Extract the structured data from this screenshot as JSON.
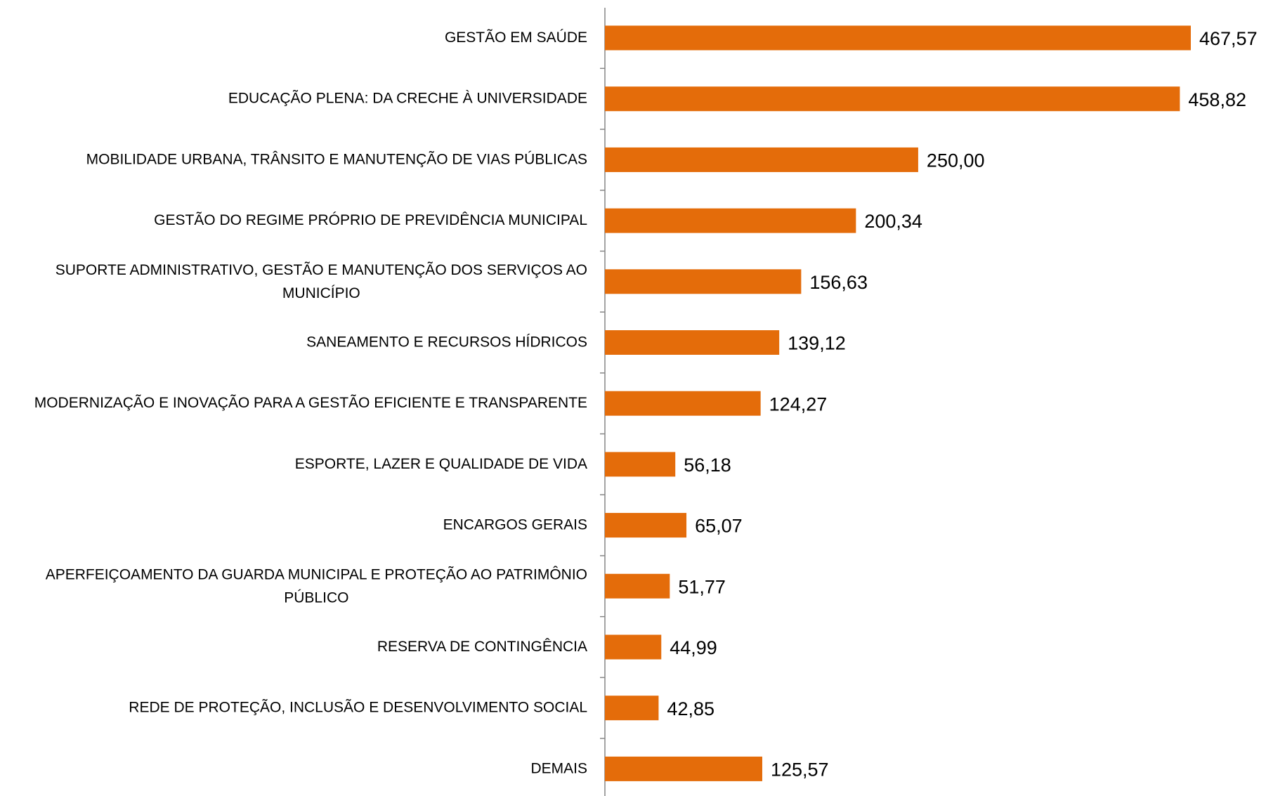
{
  "chart_data": {
    "type": "bar",
    "orientation": "horizontal",
    "categories": [
      "GESTÃO EM SAÚDE",
      "EDUCAÇÃO PLENA: DA CRECHE À UNIVERSIDADE",
      "MOBILIDADE URBANA, TRÂNSITO E MANUTENÇÃO DE VIAS PÚBLICAS",
      "GESTÃO DO REGIME PRÓPRIO DE PREVIDÊNCIA MUNICIPAL",
      "SUPORTE ADMINISTRATIVO, GESTÃO E MANUTENÇÃO DOS SERVIÇOS AO\nMUNICÍPIO",
      "SANEAMENTO E RECURSOS HÍDRICOS",
      "MODERNIZAÇÃO E INOVAÇÃO PARA A GESTÃO EFICIENTE E TRANSPARENTE",
      "ESPORTE, LAZER E QUALIDADE DE VIDA",
      "ENCARGOS GERAIS",
      "APERFEIÇOAMENTO DA GUARDA MUNICIPAL E PROTEÇÃO AO PATRIMÔNIO\nPÚBLICO",
      "RESERVA DE CONTINGÊNCIA",
      "REDE DE PROTEÇÃO, INCLUSÃO E DESENVOLVIMENTO SOCIAL",
      "DEMAIS"
    ],
    "values": [
      467.57,
      458.82,
      250.0,
      200.34,
      156.63,
      139.12,
      124.27,
      56.18,
      65.07,
      51.77,
      44.99,
      42.85,
      125.57
    ],
    "value_labels": [
      "467,57",
      "458,82",
      "250,00",
      "200,34",
      "156,63",
      "139,12",
      "124,27",
      "56,18",
      "65,07",
      "51,77",
      "44,99",
      "42,85",
      "125,57"
    ],
    "color": "#e46c0a"
  }
}
